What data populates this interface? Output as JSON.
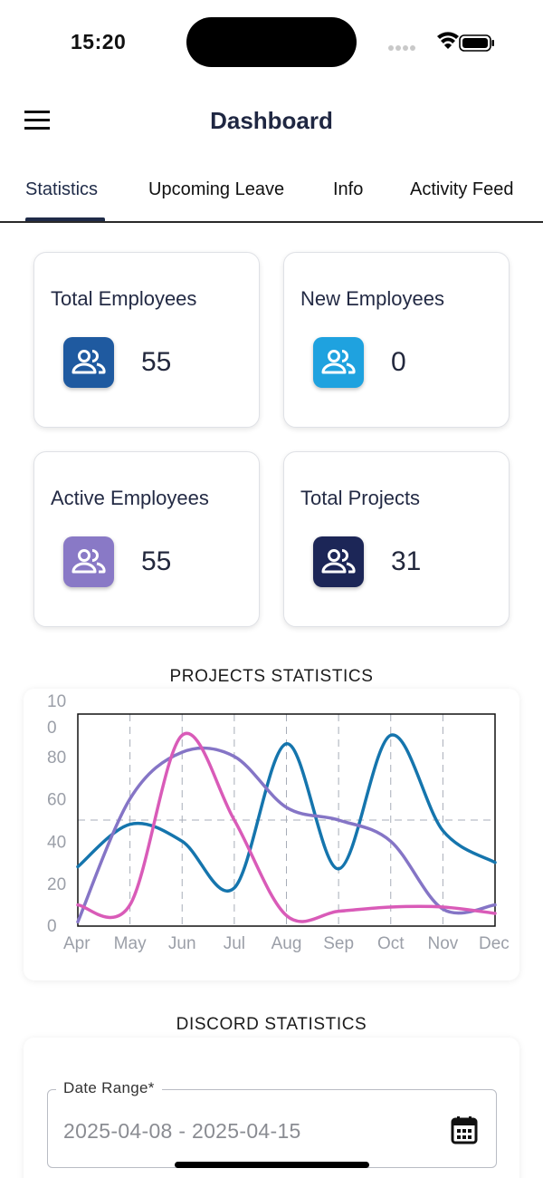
{
  "status_bar": {
    "time": "15:20"
  },
  "header": {
    "title": "Dashboard"
  },
  "tabs": [
    {
      "label": "Statistics",
      "active": true
    },
    {
      "label": "Upcoming Leave",
      "active": false
    },
    {
      "label": "Info",
      "active": false
    },
    {
      "label": "Activity Feed",
      "active": false
    }
  ],
  "stats": [
    {
      "label": "Total Employees",
      "value": "55",
      "icon": "people-icon",
      "color": "#1f5aa0"
    },
    {
      "label": "New Employees",
      "value": "0",
      "icon": "people-icon",
      "color": "#1fa2df"
    },
    {
      "label": "Active Employees",
      "value": "55",
      "icon": "people-icon",
      "color": "#8979c6"
    },
    {
      "label": "Total Projects",
      "value": "31",
      "icon": "people-icon",
      "color": "#1c2657"
    }
  ],
  "projects_section": {
    "title": "PROJECTS STATISTICS"
  },
  "chart_data": {
    "type": "line",
    "title": "PROJECTS STATISTICS",
    "categories": [
      "Apr",
      "May",
      "Jun",
      "Jul",
      "Aug",
      "Sep",
      "Oct",
      "Nov",
      "Dec"
    ],
    "y_tick_labels": [
      "10\n0",
      "80",
      "60",
      "40",
      "20",
      "0"
    ],
    "ylim": [
      0,
      100
    ],
    "series": [
      {
        "name": "series-1",
        "color": "#1575ad",
        "values": [
          28,
          48,
          40,
          18,
          86,
          27,
          90,
          45,
          30
        ]
      },
      {
        "name": "series-2",
        "color": "#8575c6",
        "values": [
          2,
          60,
          82,
          80,
          56,
          50,
          40,
          8,
          10
        ]
      },
      {
        "name": "series-3",
        "color": "#d95bb8",
        "values": [
          10,
          10,
          90,
          50,
          5,
          7,
          9,
          9,
          6
        ]
      }
    ]
  },
  "discord_section": {
    "title": "DISCORD STATISTICS",
    "date_range_label": "Date Range*",
    "date_range_value": "2025-04-08 - 2025-04-15"
  }
}
